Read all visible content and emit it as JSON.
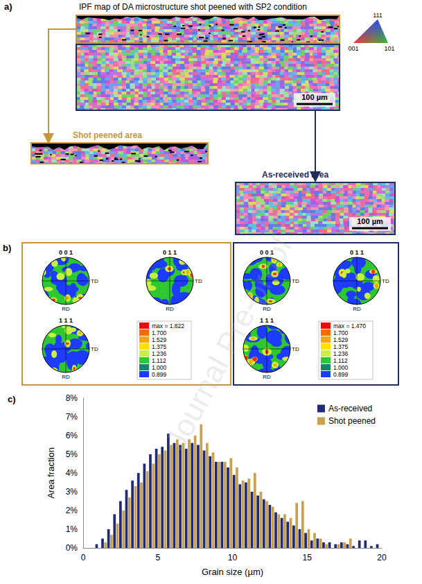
{
  "panels": {
    "a": {
      "label": "a)",
      "title": "IPF map of DA microstructure shot peened with SP2 condition",
      "ipf_key": [
        "111",
        "001",
        "101"
      ],
      "scale_bar": "100 µm",
      "shot_peened_label": "Shot peened area",
      "as_received_label": "As-received area"
    },
    "b": {
      "label": "b)",
      "pole_figures": [
        "0 0 1",
        "0 1 1",
        "1 1 1"
      ],
      "axes": [
        "TD",
        "RD"
      ],
      "shot_peened": {
        "max_label": "max = 1.822",
        "levels": [
          "1.700",
          "1.529",
          "1.375",
          "1.236",
          "1.112",
          "1.000",
          "0.899"
        ]
      },
      "as_received": {
        "max_label": "max = 1.470",
        "levels": [
          "1.700",
          "1.529",
          "1.375",
          "1.236",
          "1.112",
          "1.000",
          "0.899"
        ]
      }
    }
  },
  "watermark": "Journal Pre-proof",
  "chart_data": {
    "type": "histogram",
    "label": "c)",
    "xlabel": "Grain size (µm)",
    "ylabel": "Area fraction",
    "bins": [
      0,
      0.4,
      0.8,
      1.2,
      1.6,
      2,
      2.4,
      2.8,
      3.2,
      3.6,
      4,
      4.4,
      4.8,
      5.2,
      5.6,
      6,
      6.4,
      6.8,
      7.2,
      7.6,
      8,
      8.4,
      8.8,
      9.2,
      9.6,
      10,
      10.4,
      10.8,
      11.2,
      11.6,
      12,
      12.4,
      12.8,
      13.2,
      13.6,
      14,
      14.4,
      14.8,
      15.2,
      15.6,
      16,
      16.4,
      16.8,
      17.2,
      17.6,
      18,
      18.4,
      18.8,
      19.2,
      19.6,
      20
    ],
    "series": [
      {
        "name": "As-received",
        "color": "#1f2a78",
        "values": [
          0,
          0,
          0.2,
          0.5,
          1.0,
          1.8,
          2.5,
          3.1,
          3.6,
          4.0,
          4.5,
          5.0,
          5.3,
          5.4,
          6.1,
          5.6,
          5.5,
          5.3,
          5.6,
          5.5,
          5.2,
          4.9,
          4.6,
          4.6,
          4.3,
          3.9,
          3.4,
          3.5,
          3.0,
          2.8,
          2.6,
          2.3,
          1.9,
          1.6,
          1.4,
          1.2,
          1.0,
          0.8,
          0.4,
          0.5,
          0.3,
          0.3,
          0.2,
          0.3,
          0.2,
          0.1,
          0.4,
          0.4,
          0.1,
          0.2
        ]
      },
      {
        "name": "Shot peened",
        "color": "#c9a04e",
        "values": [
          0,
          0,
          0,
          0.3,
          0.7,
          1.3,
          2.0,
          2.7,
          3.3,
          3.5,
          4.1,
          4.5,
          5.0,
          5.2,
          5.5,
          5.8,
          5.6,
          5.8,
          6.0,
          6.6,
          5.6,
          5.1,
          4.6,
          4.6,
          4.8,
          4.3,
          3.6,
          3.7,
          4.0,
          3.0,
          2.5,
          2.2,
          1.8,
          1.8,
          1.6,
          2.4,
          2.5,
          1.0,
          0.8,
          0.5,
          0.2,
          0,
          0.2,
          0.3,
          0.5,
          0,
          0,
          0,
          0,
          0
        ]
      }
    ],
    "xlim": [
      0,
      20
    ],
    "xticks": [
      0,
      5,
      10,
      15,
      20
    ],
    "ylim": [
      0,
      8
    ],
    "yticks": [
      {
        "value": 0,
        "label": "0%"
      },
      {
        "value": 1,
        "label": "1%"
      },
      {
        "value": 2,
        "label": "2%"
      },
      {
        "value": 3,
        "label": "3%"
      },
      {
        "value": 4,
        "label": "4%"
      },
      {
        "value": 5,
        "label": "5%"
      },
      {
        "value": 6,
        "label": "6%"
      },
      {
        "value": 7,
        "label": "7%"
      },
      {
        "value": 8,
        "label": "8%"
      }
    ],
    "grid": false,
    "legend": "upper right"
  }
}
